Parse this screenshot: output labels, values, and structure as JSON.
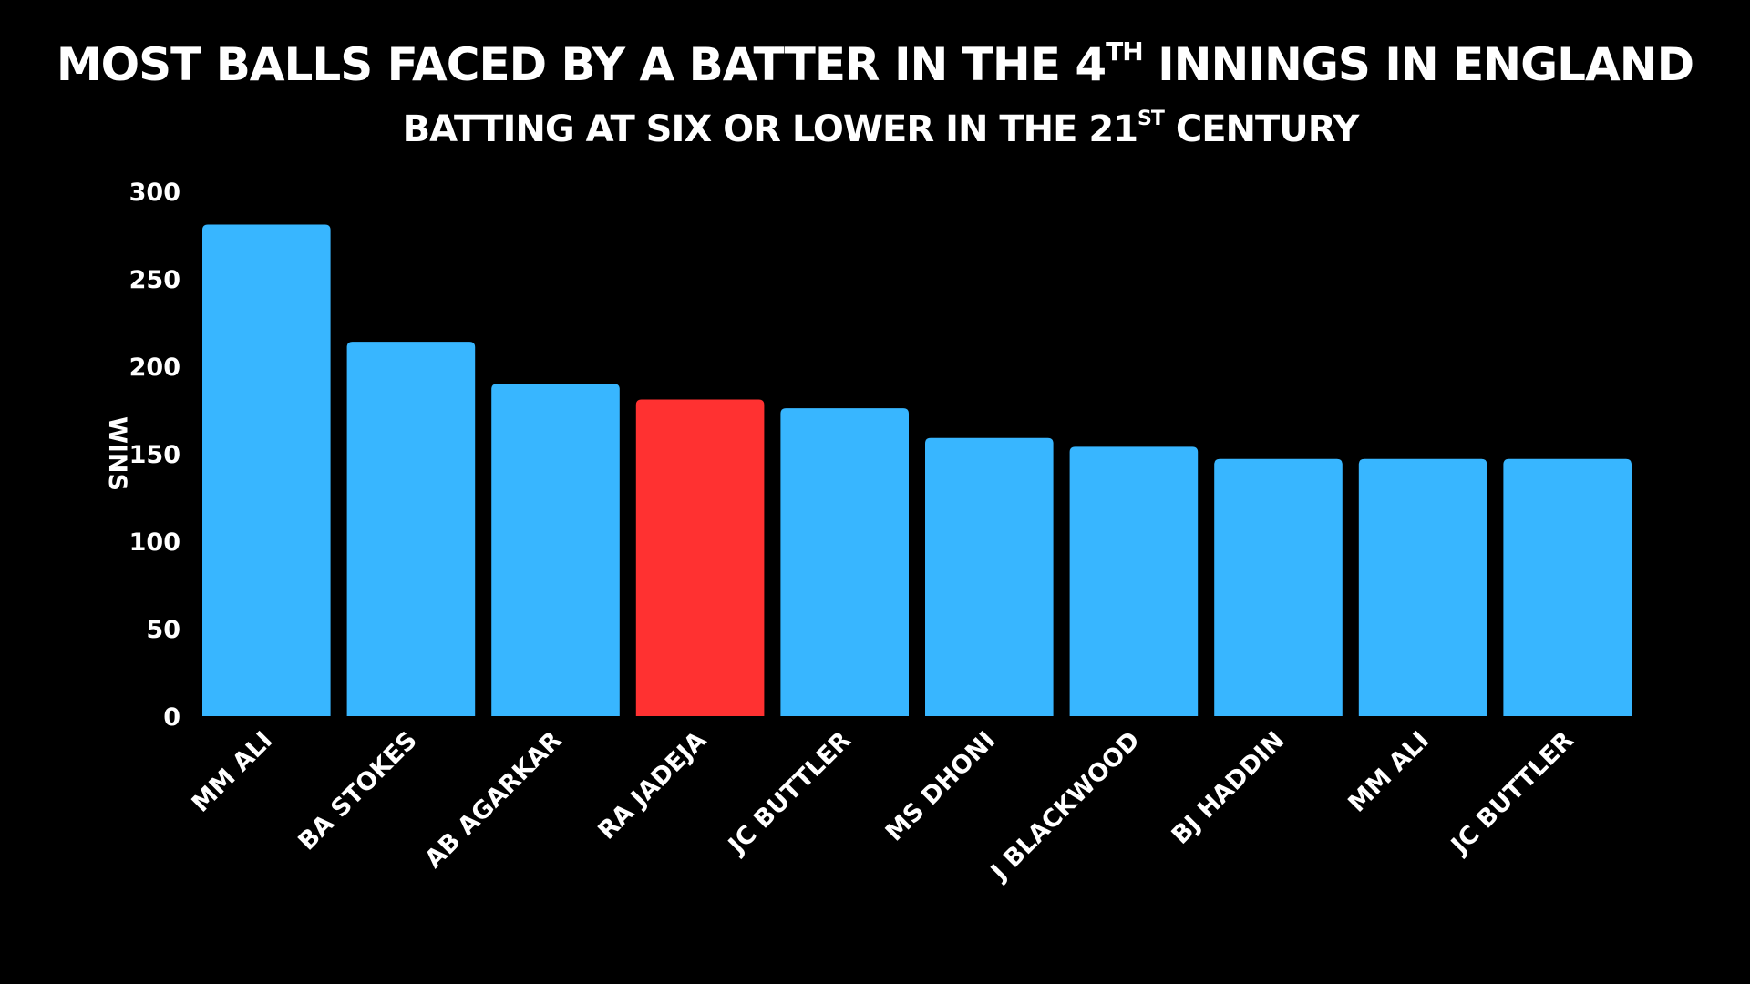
{
  "chart_data": {
    "type": "bar",
    "title": {
      "main_before": "MOST BALLS FACED BY A BATTER IN THE 4",
      "main_sup": "TH",
      "main_after": " INNINGS IN ENGLAND"
    },
    "subtitle": {
      "before": "BATTING AT SIX OR LOWER IN THE 21",
      "sup": "ST",
      "after": " CENTURY"
    },
    "ylabel": "WINS",
    "xlabel": "",
    "ylim": [
      0,
      300
    ],
    "yticks": [
      "0",
      "50",
      "100",
      "150",
      "200",
      "250",
      "300"
    ],
    "grid": false,
    "categories": [
      "MM ALI",
      "BA STOKES",
      "AB AGARKAR",
      "RA JADEJA",
      "JC BUTTLER",
      "MS DHONI",
      "J BLACKWOOD",
      "BJ HADDIN",
      "MM ALI",
      "JC BUTTLER"
    ],
    "values": [
      281,
      214,
      190,
      181,
      176,
      159,
      154,
      147,
      147,
      147
    ],
    "highlight_index": 3,
    "colors": {
      "bar": "#38b6ff",
      "highlight": "#ff3131",
      "background": "#000000",
      "text": "#ffffff"
    }
  }
}
